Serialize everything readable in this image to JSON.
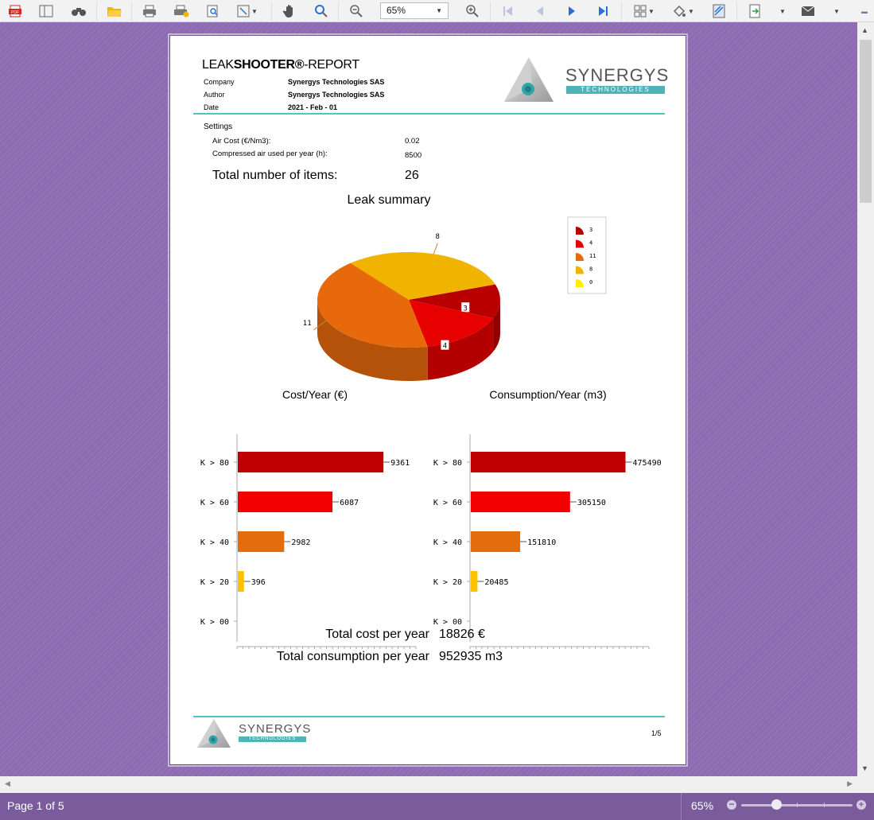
{
  "toolbar": {
    "items": [
      "pdf-export-icon",
      "layout-icon",
      "find-binoculars-icon",
      "open-folder-icon",
      "print-icon",
      "print-setup-icon",
      "find-text-icon",
      "fit-page-icon",
      "hand-tool-icon",
      "zoom-icon",
      "zoom-out-icon",
      "zoom-in-icon",
      "first-page-icon",
      "previous-page-icon",
      "next-page-icon",
      "last-page-icon",
      "multipage-icon",
      "page-color-icon",
      "watermark-icon",
      "export-icon",
      "email-icon"
    ],
    "zoom_value": "65%"
  },
  "report": {
    "title_prefix": "LEAK",
    "title_bold": "SHOOTER®",
    "title_suffix": "-REPORT",
    "fields": [
      {
        "label": "Company",
        "value": "Synergys Technologies SAS"
      },
      {
        "label": "Author",
        "value": "Synergys Technologies SAS"
      },
      {
        "label": "Date",
        "value": "2021 - Feb - 01"
      }
    ],
    "logo_name": "SYNERGYS",
    "logo_sub": "TECHNOLOGIES",
    "settings_label": "Settings",
    "air_cost_label": "Air Cost (€/Nm3):",
    "air_cost_value": "0.02",
    "air_hours_label": "Compressed air used per year (h):",
    "air_hours_value": "8500",
    "total_items_label": "Total number of items:",
    "total_items_value": "26",
    "total_cost_label": "Total cost per year",
    "total_cost_value": "18826 €",
    "total_consumption_label": "Total consumption per year",
    "total_consumption_value": "952935 m3",
    "page_number": "1/5"
  },
  "chart_data": [
    {
      "type": "pie",
      "title": "Leak summary",
      "categories": [
        "3",
        "4",
        "11",
        "8",
        "0"
      ],
      "values": [
        3,
        4,
        11,
        8,
        0
      ],
      "colors": [
        "#b80000",
        "#e60000",
        "#e8690c",
        "#f0b400",
        "#ffee00"
      ],
      "legend": "right",
      "legend_entries": [
        "3",
        "4",
        "11",
        "8",
        "0"
      ]
    },
    {
      "type": "bar",
      "orientation": "horizontal",
      "title": "Cost/Year (€)",
      "categories": [
        "K > 80",
        "K > 60",
        "K > 40",
        "K > 20",
        "K > 00"
      ],
      "values": [
        9361,
        6087,
        2982,
        396,
        0
      ],
      "labels": [
        "9361",
        "6087",
        "2982",
        "396",
        ""
      ],
      "colors": [
        "#c00000",
        "#f00000",
        "#e46c0a",
        "#ffc000",
        "#ffff00"
      ]
    },
    {
      "type": "bar",
      "orientation": "horizontal",
      "title": "Consumption/Year (m3)",
      "categories": [
        "K > 80",
        "K > 60",
        "K > 40",
        "K > 20",
        "K > 00"
      ],
      "values": [
        475490,
        305150,
        151810,
        20485,
        0
      ],
      "labels": [
        "475490",
        "305150",
        "151810",
        "20485",
        ""
      ],
      "colors": [
        "#c00000",
        "#f00000",
        "#e46c0a",
        "#ffc000",
        "#ffff00"
      ]
    }
  ],
  "status": {
    "page_info": "Page 1 of 5",
    "zoom": "65%"
  }
}
